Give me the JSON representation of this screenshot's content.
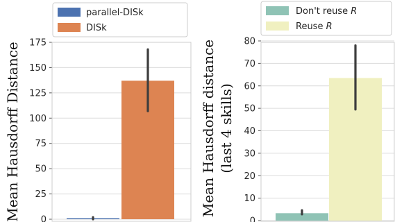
{
  "chart_data": [
    {
      "type": "bar",
      "categories": [
        "parallel-DISk",
        "DISk"
      ],
      "values": [
        1,
        137
      ],
      "error_bars": [
        [
          0,
          2
        ],
        [
          107,
          168
        ]
      ],
      "colors": [
        "#4c72b0",
        "#dd8452"
      ],
      "xlabel": "",
      "ylabel": "Mean Hausdorff Distance",
      "ylim": [
        0,
        175
      ],
      "yticks": [
        0,
        25,
        50,
        75,
        100,
        125,
        150,
        175
      ],
      "grid": true,
      "legend": {
        "placement": "top",
        "entries": [
          {
            "label": "parallel-DISk",
            "color": "#4c72b0"
          },
          {
            "label": "DISk",
            "color": "#dd8452"
          }
        ]
      }
    },
    {
      "type": "bar",
      "categories": [
        "Don't reuse R",
        "Reuse R"
      ],
      "values": [
        3.3,
        63.5
      ],
      "error_bars": [
        [
          2.8,
          4.6
        ],
        [
          49.5,
          78
        ]
      ],
      "colors": [
        "#8fc3b5",
        "#f0f0c0"
      ],
      "xlabel": "",
      "ylabel": "Mean Hausdorff distance",
      "ylabel_line2": "(last 4 skills)",
      "ylim": [
        0,
        80
      ],
      "yticks": [
        0,
        10,
        20,
        30,
        40,
        50,
        60,
        70,
        80
      ],
      "grid": true,
      "legend": {
        "placement": "top",
        "entries": [
          {
            "label_prefix": "Don't reuse ",
            "label_var": "R",
            "color": "#8fc3b5"
          },
          {
            "label_prefix": "Reuse ",
            "label_var": "R",
            "color": "#f0f0c0"
          }
        ]
      }
    }
  ]
}
